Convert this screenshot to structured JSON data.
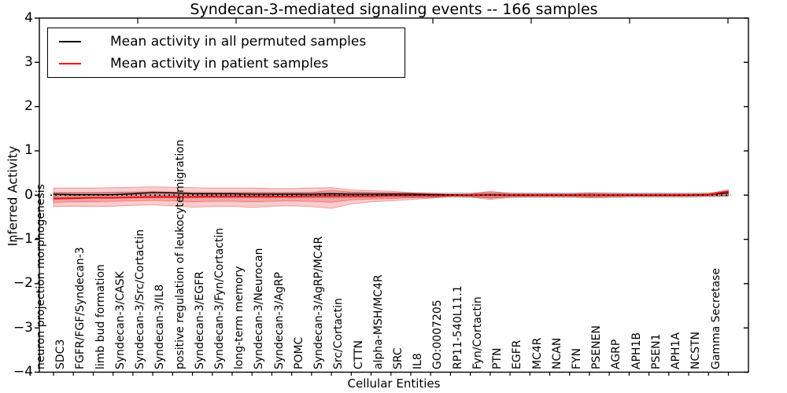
{
  "title": "Syndecan-3-mediated signaling events -- 166 samples",
  "axes": {
    "ylabel": "Inferred Activity",
    "xlabel": "Cellular Entities",
    "ytick_labels": [
      "4",
      "3",
      "2",
      "1",
      "0",
      "−1",
      "−2",
      "−3",
      "−4"
    ]
  },
  "legend": {
    "items": [
      {
        "label": "Mean activity in all permuted samples",
        "color": "#000000"
      },
      {
        "label": "Mean activity in patient samples",
        "color": "#ff0000"
      }
    ]
  },
  "chart_data": {
    "type": "line",
    "title": "Syndecan-3-mediated signaling events -- 166 samples",
    "xlabel": "Cellular Entities",
    "ylabel": "Inferred Activity",
    "ylim": [
      -4,
      4
    ],
    "yticks": [
      4,
      3,
      2,
      1,
      0,
      -1,
      -2,
      -3,
      -4
    ],
    "grid": false,
    "legend_position": "upper left",
    "zero_line": "dotted",
    "categories": [
      "neuron projection morphogenesis",
      "SDC3",
      "FGFR/FGF/Syndecan-3",
      "limb bud formation",
      "Syndecan-3/CASK",
      "Syndecan-3/Src/Cortactin",
      "Syndecan-3/IL8",
      "positive regulation of leukocyte migration",
      "Syndecan-3/EGFR",
      "Syndecan-3/Fyn/Cortactin",
      "long-term memory",
      "Syndecan-3/Neurocan",
      "Syndecan-3/AgRP",
      "POMC",
      "Syndecan-3/AgRP/MC4R",
      "Src/Cortactin",
      "CTTN",
      "alpha-MSH/MC4R",
      "SRC",
      "IL8",
      "GO:0007205",
      "RP11-540L11.1",
      "Fyn/Cortactin",
      "PTN",
      "EGFR",
      "MC4R",
      "NCAN",
      "FYN",
      "PSENEN",
      "AGRP",
      "APH1B",
      "PSEN1",
      "APH1A",
      "NCSTN",
      "Gamma Secretase"
    ],
    "series": [
      {
        "name": "Mean activity in all permuted samples",
        "color": "#000000",
        "values": [
          0.02,
          0.01,
          0.01,
          0.01,
          0.03,
          0.06,
          0.05,
          0.03,
          0.03,
          0.03,
          0.02,
          0.02,
          0.02,
          0.02,
          0.03,
          0.02,
          0.02,
          0.02,
          0.02,
          0.01,
          0.01,
          0.0,
          0.01,
          0.0,
          0.0,
          0.0,
          0.0,
          0.0,
          0.0,
          0.0,
          0.0,
          0.0,
          0.0,
          0.01,
          0.05
        ]
      },
      {
        "name": "Mean activity in patient samples",
        "color": "#ff0000",
        "values": [
          -0.08,
          -0.07,
          -0.06,
          -0.06,
          -0.05,
          -0.04,
          -0.04,
          -0.04,
          -0.03,
          -0.03,
          -0.03,
          -0.03,
          -0.03,
          -0.02,
          -0.02,
          -0.02,
          -0.02,
          -0.01,
          -0.01,
          -0.01,
          0.0,
          0.0,
          0.0,
          0.0,
          0.0,
          0.0,
          0.0,
          0.0,
          0.0,
          0.0,
          0.0,
          0.0,
          0.0,
          0.01,
          0.09
        ]
      }
    ],
    "bands": [
      {
        "name": "patient-samples-std-outer",
        "color": "#e41a1c",
        "opacity": 0.22,
        "upper": [
          0.16,
          0.16,
          0.16,
          0.17,
          0.18,
          0.19,
          0.18,
          0.17,
          0.16,
          0.16,
          0.16,
          0.15,
          0.15,
          0.16,
          0.17,
          0.12,
          0.1,
          0.09,
          0.06,
          0.04,
          0.02,
          0.03,
          0.09,
          0.04,
          0.03,
          0.03,
          0.03,
          0.05,
          0.04,
          0.03,
          0.03,
          0.03,
          0.03,
          0.04,
          0.12
        ],
        "lower": [
          -0.26,
          -0.25,
          -0.26,
          -0.25,
          -0.23,
          -0.22,
          -0.24,
          -0.27,
          -0.26,
          -0.25,
          -0.28,
          -0.25,
          -0.24,
          -0.26,
          -0.3,
          -0.2,
          -0.15,
          -0.13,
          -0.1,
          -0.07,
          -0.03,
          -0.04,
          -0.1,
          -0.05,
          -0.04,
          -0.04,
          -0.04,
          -0.06,
          -0.05,
          -0.03,
          -0.03,
          -0.03,
          -0.03,
          -0.02,
          -0.02
        ]
      },
      {
        "name": "patient-samples-std-inner",
        "color": "#e41a1c",
        "opacity": 0.22,
        "upper": [
          0.05,
          0.05,
          0.05,
          0.06,
          0.07,
          0.08,
          0.07,
          0.06,
          0.06,
          0.06,
          0.06,
          0.05,
          0.05,
          0.06,
          0.11,
          0.07,
          0.06,
          0.05,
          0.04,
          0.03,
          0.01,
          0.02,
          0.06,
          0.02,
          0.02,
          0.02,
          0.02,
          0.03,
          0.02,
          0.02,
          0.02,
          0.02,
          0.02,
          0.02,
          0.08
        ],
        "lower": [
          -0.16,
          -0.15,
          -0.15,
          -0.14,
          -0.13,
          -0.12,
          -0.13,
          -0.15,
          -0.14,
          -0.14,
          -0.15,
          -0.14,
          -0.13,
          -0.14,
          -0.16,
          -0.11,
          -0.09,
          -0.08,
          -0.06,
          -0.05,
          -0.02,
          -0.03,
          -0.07,
          -0.03,
          -0.02,
          -0.02,
          -0.02,
          -0.04,
          -0.03,
          -0.02,
          -0.02,
          -0.02,
          -0.02,
          -0.01,
          -0.01
        ]
      },
      {
        "name": "permuted-samples-std",
        "color": "#000000",
        "opacity": 0.13,
        "upper": [
          0.06,
          0.06,
          0.06,
          0.06,
          0.06,
          0.06,
          0.06,
          0.06,
          0.06,
          0.06,
          0.06,
          0.06,
          0.06,
          0.06,
          0.06,
          0.055,
          0.055,
          0.05,
          0.05,
          0.05,
          0.05,
          0.05,
          0.05,
          0.05,
          0.05,
          0.05,
          0.05,
          0.05,
          0.05,
          0.05,
          0.05,
          0.05,
          0.05,
          0.05,
          0.09
        ],
        "lower": [
          -0.06,
          -0.06,
          -0.06,
          -0.06,
          -0.06,
          -0.06,
          -0.06,
          -0.06,
          -0.06,
          -0.06,
          -0.06,
          -0.06,
          -0.06,
          -0.06,
          -0.06,
          -0.055,
          -0.055,
          -0.05,
          -0.05,
          -0.05,
          -0.05,
          -0.05,
          -0.05,
          -0.05,
          -0.05,
          -0.05,
          -0.05,
          -0.05,
          -0.05,
          -0.05,
          -0.05,
          -0.05,
          -0.05,
          -0.04,
          -0.03
        ]
      }
    ]
  }
}
